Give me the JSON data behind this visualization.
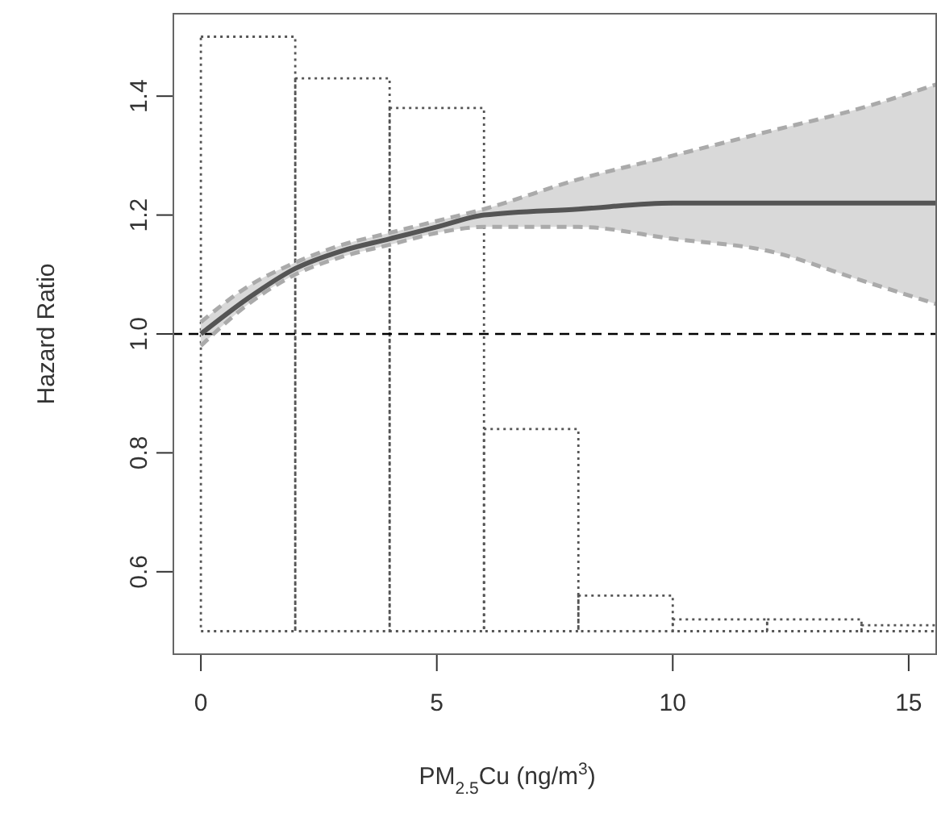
{
  "chart_data": {
    "type": "line",
    "xlabel": "PM$_{2.5}$Cu (ng/m$^{3}$)",
    "ylabel": "Hazard Ratio",
    "xlim": [
      -0.6,
      15.6
    ],
    "xticks": [
      0,
      5,
      10,
      15
    ],
    "ylim": [
      0.46,
      1.54
    ],
    "yticks": [
      0.6,
      0.8,
      {
        "value": 1,
        "label": "1.0"
      },
      1.2,
      1.4
    ],
    "grid": false,
    "legend": false,
    "series": [
      {
        "type": "histogram",
        "color": "#555555",
        "line_style": "dotted",
        "bins": [
          0,
          2,
          4,
          6,
          8,
          10,
          12,
          14,
          16
        ],
        "base": [
          0.5,
          0.5,
          0.5,
          0.5,
          0.5,
          0.5,
          0.5,
          0.5
        ],
        "values": [
          1.0,
          0.93,
          0.88,
          0.34,
          0.06,
          0.02,
          0.02,
          0.01
        ]
      },
      {
        "color": "#555555",
        "line_style": "solid",
        "x": [
          0,
          1,
          2,
          3,
          4,
          5,
          6,
          8,
          10,
          12,
          14,
          15.6
        ],
        "values": [
          1.0,
          1.06,
          1.11,
          1.14,
          1.16,
          1.18,
          1.2,
          1.21,
          1.22,
          1.22,
          1.22,
          1.22
        ],
        "lower": [
          0.98,
          1.05,
          1.1,
          1.13,
          1.15,
          1.17,
          1.18,
          1.18,
          1.16,
          1.14,
          1.09,
          1.05
        ],
        "upper": [
          1.02,
          1.08,
          1.12,
          1.15,
          1.17,
          1.19,
          1.21,
          1.26,
          1.3,
          1.34,
          1.38,
          1.42
        ]
      },
      {
        "type": "line",
        "color": "#aaaaaa",
        "line_style": "dashed",
        "x": [
          0,
          1,
          2,
          3,
          4,
          5,
          6,
          8,
          10,
          12,
          14,
          15.6
        ],
        "values": [
          0.98,
          1.05,
          1.1,
          1.13,
          1.15,
          1.17,
          1.18,
          1.18,
          1.16,
          1.14,
          1.09,
          1.05
        ]
      },
      {
        "type": "line",
        "color": "#aaaaaa",
        "line_style": "dashed",
        "x": [
          0,
          1,
          2,
          3,
          4,
          5,
          6,
          8,
          10,
          12,
          14,
          15.6
        ],
        "values": [
          1.02,
          1.08,
          1.12,
          1.15,
          1.17,
          1.19,
          1.21,
          1.26,
          1.3,
          1.34,
          1.38,
          1.42
        ]
      }
    ],
    "ref_lines": [
      {
        "axis": "y",
        "value": 1,
        "color": "#000000",
        "line_style": "dashed"
      }
    ]
  }
}
